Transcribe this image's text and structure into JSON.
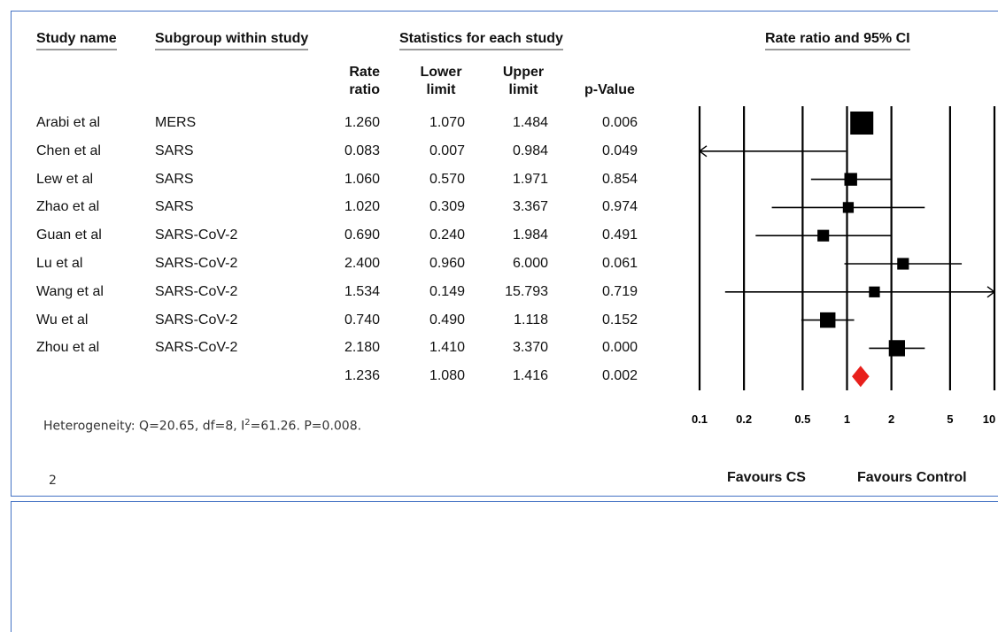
{
  "headers": {
    "study_name": "Study name",
    "subgroup": "Subgroup within study",
    "stats": "Statistics for each study",
    "rate_ratio_ci": "Rate ratio and 95% CI",
    "rate_ratio_l1": "Rate",
    "rate_ratio_l2": "ratio",
    "lower_l1": "Lower",
    "lower_l2": "limit",
    "upper_l1": "Upper",
    "upper_l2": "limit",
    "pvalue": "p-Value"
  },
  "heterogeneity": {
    "prefix": "Heterogeneity: Q=20.65, df=8, I",
    "sup": "2",
    "suffix": "=61.26. P=0.008."
  },
  "page_number": "2",
  "favours": {
    "left": "Favours CS",
    "right": "Favours Control"
  },
  "chart_data": {
    "type": "forest",
    "x_scale": "log",
    "xlim": [
      0.1,
      10
    ],
    "x_ticks": [
      0.1,
      0.2,
      0.5,
      1,
      2,
      5,
      10
    ],
    "x_tick_labels": [
      "0.1",
      "0.2",
      "0.5",
      "1",
      "2",
      "5",
      "10"
    ],
    "rows": [
      {
        "study": "Arabi et al",
        "subgroup": "MERS",
        "rr": 1.26,
        "lower": 1.07,
        "upper": 1.484,
        "p": "0.006",
        "rr_t": "1.260",
        "lower_t": "1.070",
        "upper_t": "1.484",
        "weight": 1.0
      },
      {
        "study": "Chen et al",
        "subgroup": "SARS",
        "rr": 0.083,
        "lower": 0.007,
        "upper": 0.984,
        "p": "0.049",
        "rr_t": "0.083",
        "lower_t": "0.007",
        "upper_t": "0.984",
        "weight": 0.05
      },
      {
        "study": "Lew et al",
        "subgroup": "SARS",
        "rr": 1.06,
        "lower": 0.57,
        "upper": 1.971,
        "p": "0.854",
        "rr_t": "1.060",
        "lower_t": "0.570",
        "upper_t": "1.971",
        "weight": 0.2
      },
      {
        "study": "Zhao et al",
        "subgroup": "SARS",
        "rr": 1.02,
        "lower": 0.309,
        "upper": 3.367,
        "p": "0.974",
        "rr_t": "1.020",
        "lower_t": "0.309",
        "upper_t": "3.367",
        "weight": 0.12
      },
      {
        "study": "Guan et al",
        "subgroup": "SARS-CoV-2",
        "rr": 0.69,
        "lower": 0.24,
        "upper": 1.984,
        "p": "0.491",
        "rr_t": "0.690",
        "lower_t": "0.240",
        "upper_t": "1.984",
        "weight": 0.15
      },
      {
        "study": "Lu et al",
        "subgroup": "SARS-CoV-2",
        "rr": 2.4,
        "lower": 0.96,
        "upper": 6.0,
        "p": "0.061",
        "rr_t": "2.400",
        "lower_t": "0.960",
        "upper_t": "6.000",
        "weight": 0.15
      },
      {
        "study": "Wang et al",
        "subgroup": "SARS-CoV-2",
        "rr": 1.534,
        "lower": 0.149,
        "upper": 15.793,
        "p": "0.719",
        "rr_t": "1.534",
        "lower_t": "0.149",
        "upper_t": "15.793",
        "weight": 0.12
      },
      {
        "study": "Wu et al",
        "subgroup": "SARS-CoV-2",
        "rr": 0.74,
        "lower": 0.49,
        "upper": 1.118,
        "p": "0.152",
        "rr_t": "0.740",
        "lower_t": "0.490",
        "upper_t": "1.118",
        "weight": 0.35
      },
      {
        "study": "Zhou et al",
        "subgroup": "SARS-CoV-2",
        "rr": 2.18,
        "lower": 1.41,
        "upper": 3.37,
        "p": "0.000",
        "rr_t": "2.180",
        "lower_t": "1.410",
        "upper_t": "3.370",
        "weight": 0.4
      }
    ],
    "summary": {
      "rr": 1.236,
      "lower": 1.08,
      "upper": 1.416,
      "p": "0.002",
      "rr_t": "1.236",
      "lower_t": "1.080",
      "upper_t": "1.416"
    },
    "colors": {
      "marker": "#000000",
      "summary": "#e8201c"
    }
  }
}
